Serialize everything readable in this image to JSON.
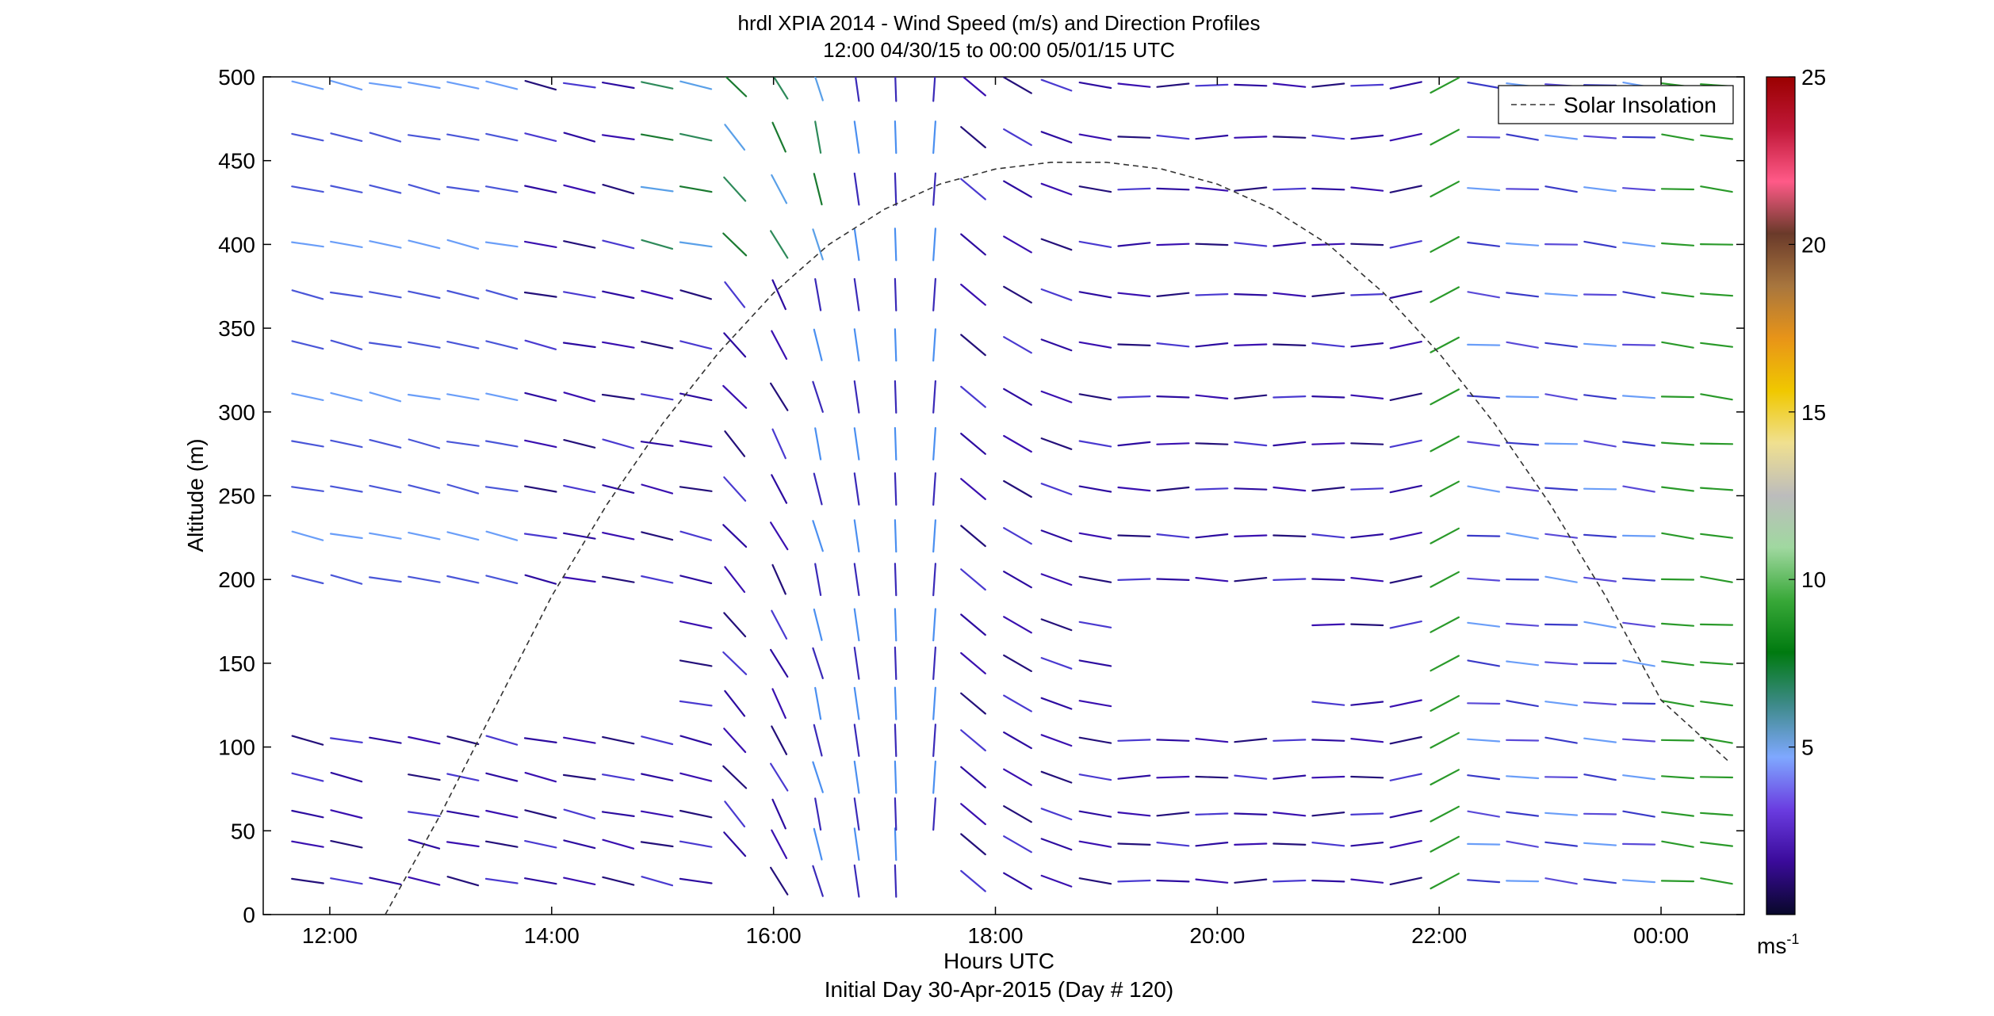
{
  "chart_data": {
    "type": "wind-barb profile",
    "title": "hrdl XPIA 2014 - Wind Speed (m/s) and Direction Profiles",
    "subtitle": "12:00 04/30/15 to 00:00 05/01/15  UTC",
    "xlabel": "Hours UTC",
    "xlabel2": "Initial Day 30-Apr-2015 (Day # 120)",
    "ylabel": "Altitude (m)",
    "xlim": [
      11.4,
      24.75
    ],
    "ylim": [
      0,
      500
    ],
    "x_ticks": [
      {
        "value": 12,
        "label": "12:00"
      },
      {
        "value": 14,
        "label": "14:00"
      },
      {
        "value": 16,
        "label": "16:00"
      },
      {
        "value": 18,
        "label": "18:00"
      },
      {
        "value": 20,
        "label": "20:00"
      },
      {
        "value": 22,
        "label": "22:00"
      },
      {
        "value": 24,
        "label": "00:00"
      }
    ],
    "y_ticks": [
      0,
      50,
      100,
      150,
      200,
      250,
      300,
      350,
      400,
      450,
      500
    ],
    "legend": {
      "entry": "Solar Insolation",
      "placement": "top-right"
    },
    "colorbar": {
      "range": [
        0,
        25
      ],
      "ticks": [
        5,
        10,
        15,
        20,
        25
      ],
      "unit_label": "ms",
      "unit_exponent": "-1",
      "stops": [
        "#08082a",
        "#3a0a9a",
        "#6a3ce0",
        "#7fa8ff",
        "#3e8a8a",
        "#007a10",
        "#38a838",
        "#a0d8a0",
        "#bcbcbc",
        "#f0e090",
        "#f0c800",
        "#e89418",
        "#a8763e",
        "#6a3a2a",
        "#ff5a88",
        "#c01838",
        "#9a0000"
      ]
    },
    "solar_insolation": {
      "x": [
        12.5,
        13.0,
        13.5,
        14.0,
        14.5,
        15.0,
        15.5,
        16.0,
        16.5,
        17.0,
        17.5,
        18.0,
        18.5,
        19.0,
        19.5,
        20.0,
        20.5,
        21.0,
        21.5,
        22.0,
        22.5,
        23.0,
        23.5,
        24.0,
        24.6
      ],
      "y": [
        0,
        60,
        125,
        190,
        245,
        293,
        335,
        371,
        400,
        421,
        436,
        445,
        449,
        449,
        445,
        436,
        421,
        400,
        371,
        335,
        293,
        245,
        190,
        128,
        92
      ]
    },
    "wind_barbs": {
      "times": [
        11.8,
        12.15,
        12.5,
        12.85,
        13.2,
        13.55,
        13.9,
        14.25,
        14.6,
        14.95,
        15.3,
        15.65,
        16.05,
        16.4,
        16.75,
        17.1,
        17.45,
        17.8,
        18.2,
        18.55,
        18.9,
        19.25,
        19.6,
        19.95,
        20.3,
        20.65,
        21.0,
        21.35,
        21.7,
        22.05,
        22.4,
        22.75,
        23.1,
        23.45,
        23.8,
        24.15,
        24.5
      ],
      "altitudes": [
        20,
        42,
        60,
        82,
        104,
        126,
        150,
        173,
        200,
        226,
        254,
        281,
        309,
        340,
        370,
        400,
        433,
        464,
        495
      ],
      "note": "speed in m/s, direction as rendered segment angle"
    }
  }
}
